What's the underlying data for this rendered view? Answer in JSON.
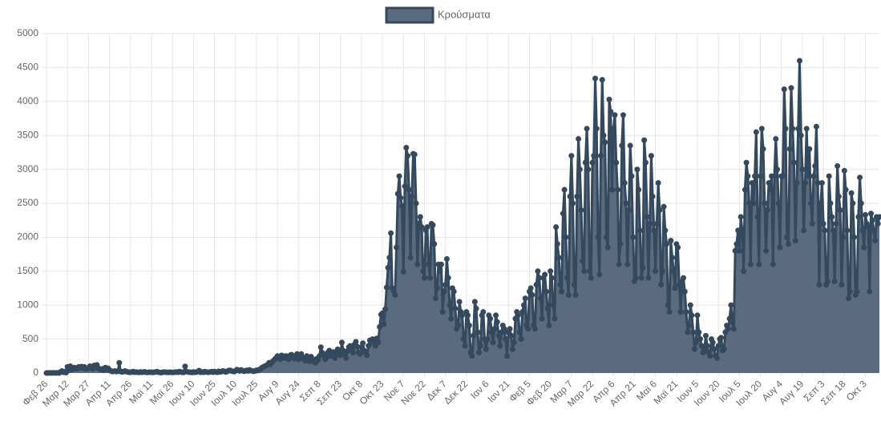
{
  "chart_data": {
    "type": "line",
    "yticks": [
      0,
      500,
      1000,
      1500,
      2000,
      2500,
      3000,
      3500,
      4000,
      4500,
      5000
    ],
    "ylim": [
      0,
      5000
    ],
    "grid": true,
    "legend": "top",
    "categories": [
      "Φεβ 26",
      null,
      null,
      null,
      null,
      null,
      null,
      null,
      null,
      null,
      null,
      null,
      null,
      null,
      null,
      "Μαρ 12",
      null,
      null,
      null,
      null,
      null,
      null,
      null,
      null,
      null,
      null,
      null,
      null,
      null,
      null,
      "Μαρ 27",
      null,
      null,
      null,
      null,
      null,
      null,
      null,
      null,
      null,
      null,
      null,
      null,
      null,
      null,
      "Απρ 11",
      null,
      null,
      null,
      null,
      null,
      null,
      null,
      null,
      null,
      null,
      null,
      null,
      null,
      null,
      "Απρ 26",
      null,
      null,
      null,
      null,
      null,
      null,
      null,
      null,
      null,
      null,
      null,
      null,
      null,
      null,
      "Μαϊ 11",
      null,
      null,
      null,
      null,
      null,
      null,
      null,
      null,
      null,
      null,
      null,
      null,
      null,
      null,
      "Μαϊ 26",
      null,
      null,
      null,
      null,
      null,
      null,
      null,
      null,
      null,
      null,
      null,
      null,
      null,
      null,
      "Ιουν 10",
      null,
      null,
      null,
      null,
      null,
      null,
      null,
      null,
      null,
      null,
      null,
      null,
      null,
      null,
      "Ιουν 25",
      null,
      null,
      null,
      null,
      null,
      null,
      null,
      null,
      null,
      null,
      null,
      null,
      null,
      null,
      "Ιουλ 10",
      null,
      null,
      null,
      null,
      null,
      null,
      null,
      null,
      null,
      null,
      null,
      null,
      null,
      null,
      "Ιουλ 25",
      null,
      null,
      null,
      null,
      null,
      null,
      null,
      null,
      null,
      null,
      null,
      null,
      null,
      null,
      "Αυγ 9",
      null,
      null,
      null,
      null,
      null,
      null,
      null,
      null,
      null,
      null,
      null,
      null,
      null,
      null,
      "Αυγ 24",
      null,
      null,
      null,
      null,
      null,
      null,
      null,
      null,
      null,
      null,
      null,
      null,
      null,
      null,
      "Σεπ 8",
      null,
      null,
      null,
      null,
      null,
      null,
      null,
      null,
      null,
      null,
      null,
      null,
      null,
      null,
      "Σεπ 23",
      null,
      null,
      null,
      null,
      null,
      null,
      null,
      null,
      null,
      null,
      null,
      null,
      null,
      null,
      "Οκτ 8",
      null,
      null,
      null,
      null,
      null,
      null,
      null,
      null,
      null,
      null,
      null,
      null,
      null,
      null,
      "Οκτ 23",
      null,
      null,
      null,
      null,
      null,
      null,
      null,
      null,
      null,
      null,
      null,
      null,
      null,
      null,
      "Νοε 7",
      null,
      null,
      null,
      null,
      null,
      null,
      null,
      null,
      null,
      null,
      null,
      null,
      null,
      null,
      "Νοε 22",
      null,
      null,
      null,
      null,
      null,
      null,
      null,
      null,
      null,
      null,
      null,
      null,
      null,
      null,
      "Δεκ 7",
      null,
      null,
      null,
      null,
      null,
      null,
      null,
      null,
      null,
      null,
      null,
      null,
      null,
      null,
      "Δεκ 22",
      null,
      null,
      null,
      null,
      null,
      null,
      null,
      null,
      null,
      null,
      null,
      null,
      null,
      null,
      "Ιαν 6",
      null,
      null,
      null,
      null,
      null,
      null,
      null,
      null,
      null,
      null,
      null,
      null,
      null,
      null,
      "Ιαν 21",
      null,
      null,
      null,
      null,
      null,
      null,
      null,
      null,
      null,
      null,
      null,
      null,
      null,
      null,
      "Φεβ 5",
      null,
      null,
      null,
      null,
      null,
      null,
      null,
      null,
      null,
      null,
      null,
      null,
      null,
      null,
      "Φεβ 20",
      null,
      null,
      null,
      null,
      null,
      null,
      null,
      null,
      null,
      null,
      null,
      null,
      null,
      null,
      "Μαρ 7",
      null,
      null,
      null,
      null,
      null,
      null,
      null,
      null,
      null,
      null,
      null,
      null,
      null,
      null,
      "Μαρ 22",
      null,
      null,
      null,
      null,
      null,
      null,
      null,
      null,
      null,
      null,
      null,
      null,
      null,
      null,
      "Απρ 6",
      null,
      null,
      null,
      null,
      null,
      null,
      null,
      null,
      null,
      null,
      null,
      null,
      null,
      null,
      "Απρ 21",
      null,
      null,
      null,
      null,
      null,
      null,
      null,
      null,
      null,
      null,
      null,
      null,
      null,
      null,
      "Μαϊ 6",
      null,
      null,
      null,
      null,
      null,
      null,
      null,
      null,
      null,
      null,
      null,
      null,
      null,
      null,
      "Μαϊ 21",
      null,
      null,
      null,
      null,
      null,
      null,
      null,
      null,
      null,
      null,
      null,
      null,
      null,
      null,
      "Ιουν 5",
      null,
      null,
      null,
      null,
      null,
      null,
      null,
      null,
      null,
      null,
      null,
      null,
      null,
      null,
      "Ιουν 20",
      null,
      null,
      null,
      null,
      null,
      null,
      null,
      null,
      null,
      null,
      null,
      null,
      null,
      null,
      "Ιουλ 5",
      null,
      null,
      null,
      null,
      null,
      null,
      null,
      null,
      null,
      null,
      null,
      null,
      null,
      null,
      "Ιουλ 20",
      null,
      null,
      null,
      null,
      null,
      null,
      null,
      null,
      null,
      null,
      null,
      null,
      null,
      null,
      "Αυγ 4",
      null,
      null,
      null,
      null,
      null,
      null,
      null,
      null,
      null,
      null,
      null,
      null,
      null,
      null,
      "Αυγ 19",
      null,
      null,
      null,
      null,
      null,
      null,
      null,
      null,
      null,
      null,
      null,
      null,
      null,
      null,
      "Σεπ 3",
      null,
      null,
      null,
      null,
      null,
      null,
      null,
      null,
      null,
      null,
      null,
      null,
      null,
      null,
      "Σεπ 18",
      null,
      null,
      null,
      null,
      null,
      null,
      null,
      null,
      null,
      null,
      null,
      null,
      null,
      null,
      "Οκτ 3",
      null,
      null,
      null,
      null,
      null,
      null,
      null,
      null,
      null,
      null
    ],
    "series": [
      {
        "name": "Κρούσματα",
        "color": "#34495e",
        "fill": "#5b6b7f",
        "values": [
          0,
          0,
          1,
          0,
          1,
          3,
          0,
          2,
          1,
          0,
          15,
          30,
          10,
          20,
          5,
          90,
          40,
          100,
          50,
          60,
          80,
          70,
          60,
          90,
          80,
          95,
          70,
          90,
          60,
          70,
          70,
          100,
          90,
          60,
          110,
          80,
          120,
          70,
          60,
          50,
          60,
          40,
          80,
          50,
          70,
          40,
          30,
          20,
          25,
          30,
          20,
          25,
          150,
          20,
          15,
          20,
          30,
          20,
          15,
          10,
          10,
          15,
          20,
          10,
          15,
          10,
          8,
          15,
          10,
          12,
          18,
          10,
          8,
          10,
          12,
          10,
          8,
          12,
          15,
          20,
          10,
          8,
          5,
          10,
          15,
          12,
          10,
          8,
          12,
          10,
          8,
          10,
          12,
          15,
          10,
          20,
          15,
          10,
          8,
          97,
          20,
          15,
          12,
          10,
          8,
          15,
          10,
          12,
          20,
          35,
          10,
          15,
          10,
          20,
          15,
          12,
          10,
          15,
          20,
          12,
          20,
          15,
          10,
          25,
          15,
          20,
          30,
          25,
          15,
          20,
          35,
          40,
          30,
          25,
          20,
          30,
          50,
          40,
          30,
          45,
          35,
          25,
          30,
          40,
          30,
          45,
          35,
          30,
          25,
          30,
          40,
          35,
          50,
          60,
          80,
          90,
          100,
          110,
          120,
          150,
          130,
          160,
          180,
          200,
          220,
          250,
          230,
          200,
          260,
          240,
          220,
          250,
          230,
          200,
          260,
          270,
          240,
          210,
          250,
          280,
          200,
          250,
          280,
          230,
          200,
          180,
          250,
          220,
          170,
          240,
          200,
          180,
          150,
          210,
          190,
          250,
          380,
          300,
          270,
          200,
          230,
          300,
          330,
          250,
          280,
          310,
          220,
          270,
          350,
          300,
          260,
          450,
          330,
          280,
          220,
          320,
          380,
          400,
          350,
          300,
          420,
          460,
          390,
          300,
          280,
          380,
          440,
          330,
          300,
          260,
          400,
          480,
          450,
          500,
          460,
          400,
          510,
          450,
          680,
          860,
          880,
          720,
          940,
          1260,
          1550,
          1700,
          2060,
          1250,
          1210,
          1150,
          1850,
          2640,
          2900,
          2580,
          2460,
          1490,
          2750,
          3320,
          3200,
          2700,
          1700,
          2600,
          3230,
          3220,
          2500,
          1600,
          2200,
          2300,
          2150,
          1500,
          1400,
          2100,
          2150,
          1600,
          1400,
          2200,
          2180,
          1900,
          1100,
          1250,
          1600,
          1500,
          1600,
          900,
          1200,
          1300,
          1680,
          1400,
          1000,
          800,
          1250,
          1200,
          950,
          650,
          700,
          1050,
          900,
          850,
          500,
          400,
          900,
          850,
          700,
          300,
          250,
          550,
          1050,
          950,
          600,
          300,
          400,
          850,
          900,
          500,
          350,
          500,
          850,
          800,
          600,
          450,
          650,
          850,
          750,
          550,
          400,
          600,
          700,
          650,
          500,
          250,
          600,
          650,
          550,
          350,
          450,
          800,
          900,
          850,
          600,
          500,
          900,
          1000,
          1100,
          700,
          650,
          1200,
          1250,
          1150,
          700,
          650,
          1300,
          1500,
          1400,
          1100,
          800,
          1400,
          1450,
          1200,
          950,
          700,
          1500,
          1400,
          1000,
          800,
          2150,
          1900,
          1700,
          1300,
          1200,
          2350,
          2700,
          2000,
          1400,
          1150,
          2600,
          3200,
          2500,
          1300,
          1150,
          2600,
          3450,
          3000,
          2400,
          1650,
          1500,
          3100,
          3600,
          3000,
          1500,
          1400,
          3100,
          3200,
          4340,
          3600,
          2000,
          1450,
          3200,
          4320,
          3500,
          3400,
          2000,
          1850,
          4030,
          3850,
          2700,
          3600,
          3800,
          3100,
          2700,
          1600,
          1900,
          3350,
          3800,
          2800,
          2500,
          1600,
          2400,
          3350,
          2900,
          2000,
          1350,
          1400,
          3000,
          2700,
          2100,
          1400,
          1550,
          3430,
          3100,
          2300,
          1400,
          2200,
          3200,
          2600,
          2100,
          1500,
          2200,
          2800,
          2400,
          1300,
          1500,
          2450,
          2100,
          1900,
          1000,
          900,
          1950,
          1700,
          1500,
          1250,
          1900,
          1850,
          1300,
          900,
          1350,
          1400,
          1200,
          900,
          600,
          700,
          1000,
          850,
          600,
          350,
          450,
          850,
          600,
          500,
          400,
          300,
          350,
          550,
          400,
          300,
          250,
          500,
          450,
          350,
          250,
          220,
          400,
          500,
          520,
          330,
          350,
          600,
          700,
          650,
          800,
          1000,
          750,
          650,
          1800,
          1900,
          2100,
          1800,
          2300,
          2100,
          1500,
          2700,
          3100,
          2900,
          2500,
          1600,
          2800,
          2500,
          2900,
          3550,
          2300,
          1600,
          2900,
          3600,
          3300,
          2500,
          1800,
          2400,
          2800,
          2700,
          2900,
          1600,
          2900,
          3450,
          3000,
          2500,
          1850,
          2900,
          2900,
          4180,
          3600,
          2000,
          1900,
          3300,
          4200,
          3600,
          3100,
          1950,
          2800,
          3600,
          4600,
          3500,
          3000,
          2100,
          2800,
          3600,
          2900,
          3300,
          2500,
          2200,
          2900,
          3050,
          3630,
          2800,
          1300,
          2500,
          2800,
          2200,
          2100,
          1300,
          1350,
          2900,
          2500,
          2300,
          2100,
          1350,
          2200,
          3050,
          2600,
          2400,
          1300,
          2000,
          2980,
          2700,
          2100,
          1100,
          1200,
          2650,
          2500,
          2000,
          1150,
          1200,
          2300,
          2880,
          2500,
          2100,
          1850,
          2330,
          2200,
          2150,
          1200,
          2350,
          2250,
          2100,
          1950,
          2300,
          2200,
          2300
        ]
      }
    ]
  }
}
